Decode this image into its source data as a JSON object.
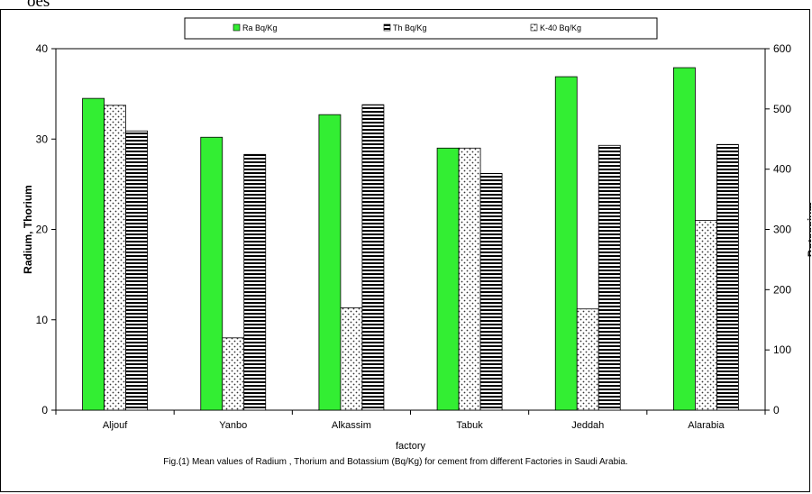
{
  "header_fragment": "oes",
  "chart_data": {
    "type": "bar",
    "categories": [
      "Aljouf",
      "Yanbo",
      "Alkassim",
      "Tabuk",
      "Jeddah",
      "Alarabia"
    ],
    "series": [
      {
        "name": "Ra  Bq/Kg",
        "axis": "left",
        "color": "#33ee33",
        "values": [
          34.5,
          30.2,
          32.7,
          29.0,
          36.9,
          37.9
        ]
      },
      {
        "name": "K-40  Bq/Kg",
        "axis": "right",
        "pattern": "dots",
        "values": [
          506,
          120,
          170,
          435,
          168,
          315
        ]
      },
      {
        "name": "Th  Bq/Kg",
        "axis": "left",
        "pattern": "horizontal-stripes",
        "values": [
          30.9,
          28.3,
          33.8,
          26.2,
          29.3,
          29.4
        ]
      }
    ],
    "legend_order": [
      "Ra  Bq/Kg",
      "Th  Bq/Kg",
      "K-40  Bq/Kg"
    ],
    "ylabel": "Radium, Thorium",
    "y2label": "Botassium",
    "xlabel": "factory",
    "ylim": [
      0,
      40
    ],
    "y2lim": [
      0,
      600
    ],
    "yticks": [
      "0",
      "10",
      "20",
      "30",
      "40"
    ],
    "y2ticks": [
      "0",
      "100",
      "200",
      "300",
      "400",
      "500",
      "600"
    ],
    "legend_position": "top",
    "grid": false,
    "caption": "Fig.(1) Mean values of  Radium , Thorium and Botassium  (Bq/Kg) for cement from different Factories in Saudi Arabia."
  }
}
